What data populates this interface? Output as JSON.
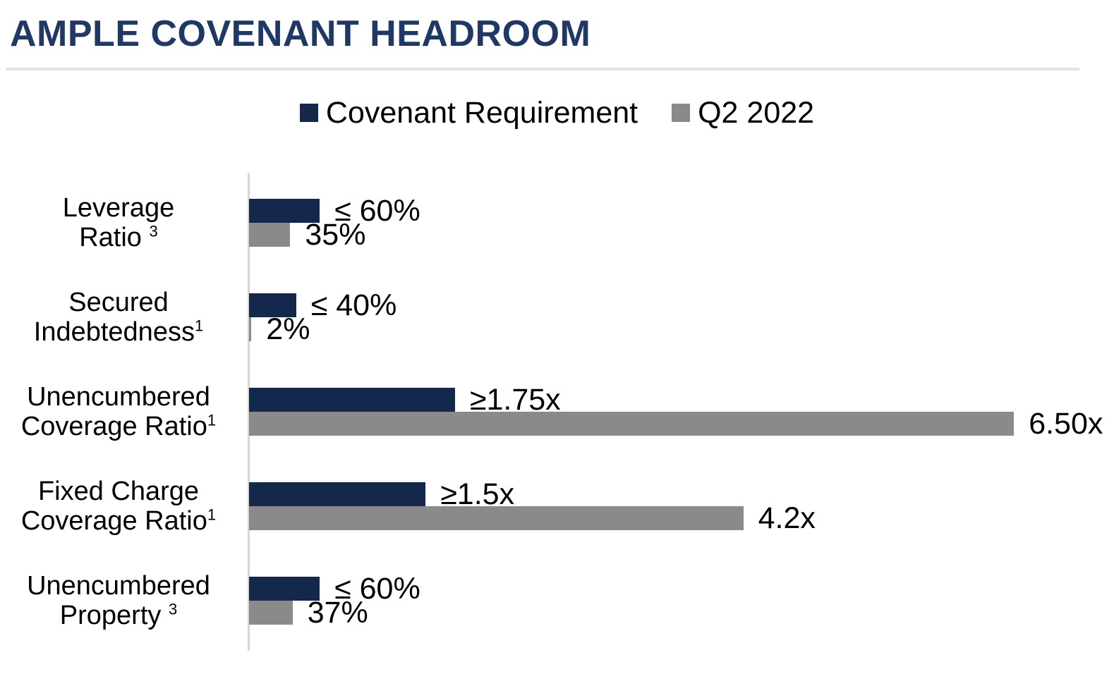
{
  "header": {
    "title": "AMPLE COVENANT HEADROOM"
  },
  "colors": {
    "title": "#1F3864",
    "divider": "#E3E3E3",
    "axis_line": "#D6D6D6",
    "text": "#000000",
    "covenant_navy": "#13284B",
    "q2_gray": "#8A8A8A"
  },
  "legend": {
    "items": [
      {
        "label": "Covenant Requirement",
        "color": "#13284B"
      },
      {
        "label": "Q2 2022",
        "color": "#8A8A8A"
      }
    ]
  },
  "chart_data": {
    "type": "bar",
    "orientation": "horizontal",
    "title": "AMPLE COVENANT HEADROOM",
    "legend_position": "top-center",
    "grid": false,
    "x_axis": {
      "min": 0,
      "max": 7.35,
      "ticks_visible": false,
      "unit_scale": "percent values plotted as fractions, coverage ratios as x-multiples"
    },
    "categories": [
      {
        "line1": "Leverage",
        "line2": "Ratio",
        "footnote": "3",
        "footnote_space": true
      },
      {
        "line1": "Secured",
        "line2": "Indebtedness",
        "footnote": "1",
        "footnote_space": false
      },
      {
        "line1": "Unencumbered",
        "line2": "Coverage Ratio",
        "footnote": "1",
        "footnote_space": false
      },
      {
        "line1": "Fixed Charge",
        "line2": "Coverage Ratio",
        "footnote": "1",
        "footnote_space": false
      },
      {
        "line1": "Unencumbered",
        "line2": "Property",
        "footnote": "3",
        "footnote_space": true
      }
    ],
    "series": [
      {
        "name": "Covenant Requirement",
        "color": "#13284B",
        "values": [
          0.6,
          0.4,
          1.75,
          1.5,
          0.6
        ],
        "labels": [
          "≤ 60%",
          "≤ 40%",
          "≥1.75x",
          "≥1.5x",
          "≤ 60%"
        ]
      },
      {
        "name": "Q2 2022",
        "color": "#8A8A8A",
        "values": [
          0.35,
          0.02,
          6.5,
          4.2,
          0.37
        ],
        "labels": [
          "35%",
          "2%",
          "6.50x",
          "4.2x",
          "37%"
        ]
      }
    ]
  }
}
